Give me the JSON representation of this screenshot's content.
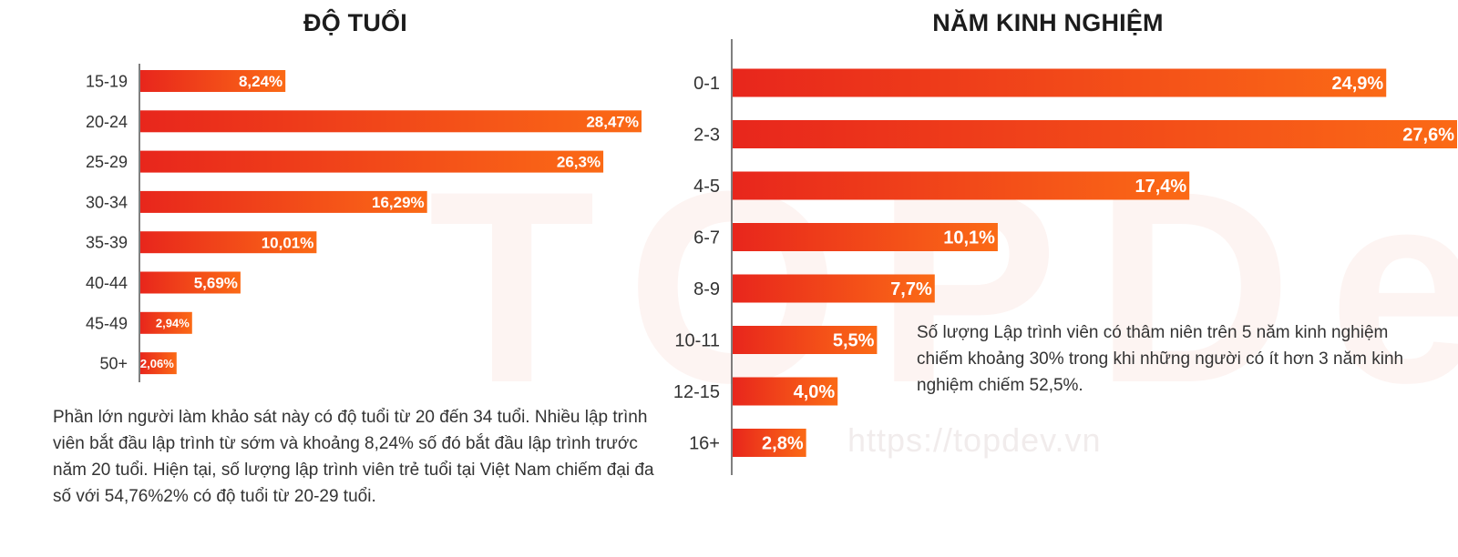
{
  "watermark": {
    "text": "https://topdev.vn",
    "logo_text": "TOPDev"
  },
  "colors": {
    "bar_start": "#e8261c",
    "bar_end": "#fb6a16",
    "axis": "#555555"
  },
  "chart_data": [
    {
      "type": "bar",
      "orientation": "horizontal",
      "title": "ĐỘ TUỔI",
      "categories": [
        "15-19",
        "20-24",
        "25-29",
        "30-34",
        "35-39",
        "40-44",
        "45-49",
        "50+"
      ],
      "values": [
        8.24,
        28.47,
        26.3,
        16.29,
        10.01,
        5.69,
        2.94,
        2.06
      ],
      "value_labels": [
        "8,24%",
        "28,47%",
        "26,3%",
        "16,29%",
        "10,01%",
        "5,69%",
        "2,94%",
        "2,06%"
      ],
      "xlim": [
        0,
        28.47
      ],
      "grid": false,
      "legend": "none",
      "caption": "Phần lớn người làm khảo sát này có độ tuổi từ 20 đến 34 tuổi. Nhiều lập trình viên bắt đầu lập trình từ sớm và khoảng 8,24% số đó bắt đầu lập trình trước năm 20 tuổi. Hiện tại, số lượng lập trình viên trẻ tuổi tại Việt Nam chiếm đại đa số với 54,76%2% có độ tuổi từ 20-29 tuổi."
    },
    {
      "type": "bar",
      "orientation": "horizontal",
      "title": "NĂM KINH NGHIỆM",
      "categories": [
        "0-1",
        "2-3",
        "4-5",
        "6-7",
        "8-9",
        "10-11",
        "12-15",
        "16+"
      ],
      "values": [
        24.9,
        27.6,
        17.4,
        10.1,
        7.7,
        5.5,
        4.0,
        2.8
      ],
      "value_labels": [
        "24,9%",
        "27,6%",
        "17,4%",
        "10,1%",
        "7,7%",
        "5,5%",
        "4,0%",
        "2,8%"
      ],
      "xlim": [
        0,
        27.6
      ],
      "grid": false,
      "legend": "none",
      "caption": "Số lượng Lập trình viên có thâm niên trên 5 năm kinh nghiệm chiếm khoảng 30% trong khi những người có ít hơn 3 năm kinh nghiệm chiếm 52,5%."
    }
  ]
}
